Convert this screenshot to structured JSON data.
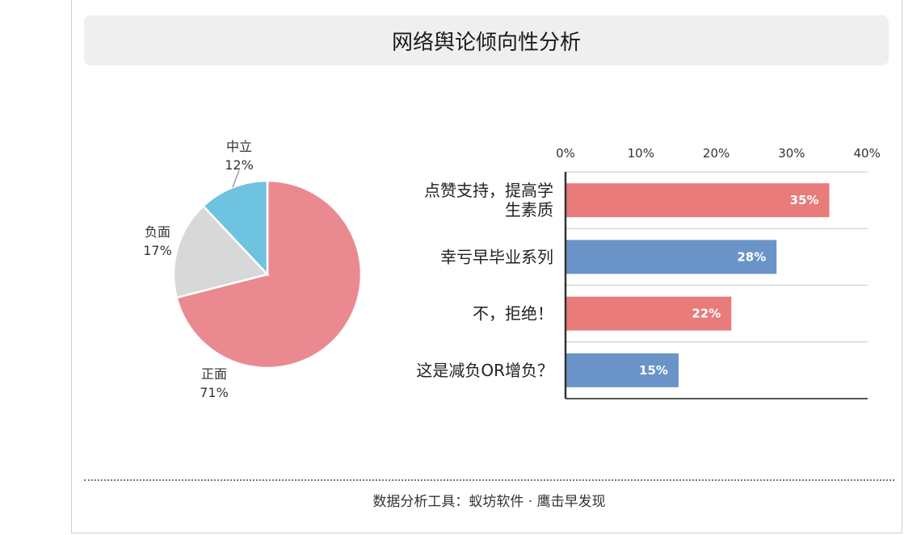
{
  "title": "网络舆论倾向性分析",
  "footer": "数据分析工具：蚁坊软件 · 鹰击早发现",
  "chart_data": [
    {
      "type": "pie",
      "slices": [
        {
          "name": "正面",
          "label": "71%",
          "value": 71,
          "color": "#ea8a90"
        },
        {
          "name": "负面",
          "label": "17%",
          "value": 17,
          "color": "#d8d8d8"
        },
        {
          "name": "中立",
          "label": "12%",
          "value": 12,
          "color": "#6ec3e0"
        }
      ]
    },
    {
      "type": "bar",
      "orientation": "horizontal",
      "categories": [
        [
          "点赞支持，提高学",
          "生素质"
        ],
        [
          "幸亏早毕业系列"
        ],
        [
          "不，拒绝！"
        ],
        [
          "这是减负OR增负？"
        ]
      ],
      "values": [
        35,
        28,
        22,
        15
      ],
      "value_labels": [
        "35%",
        "28%",
        "22%",
        "15%"
      ],
      "colors": [
        "#e97b7b",
        "#6a93c8",
        "#e97b7b",
        "#6a93c8"
      ],
      "xlim": [
        0,
        40
      ],
      "ticks": [
        0,
        10,
        20,
        30,
        40
      ],
      "tick_labels": [
        "0%",
        "10%",
        "20%",
        "30%",
        "40%"
      ],
      "axis_position": "top",
      "grid": true
    }
  ]
}
